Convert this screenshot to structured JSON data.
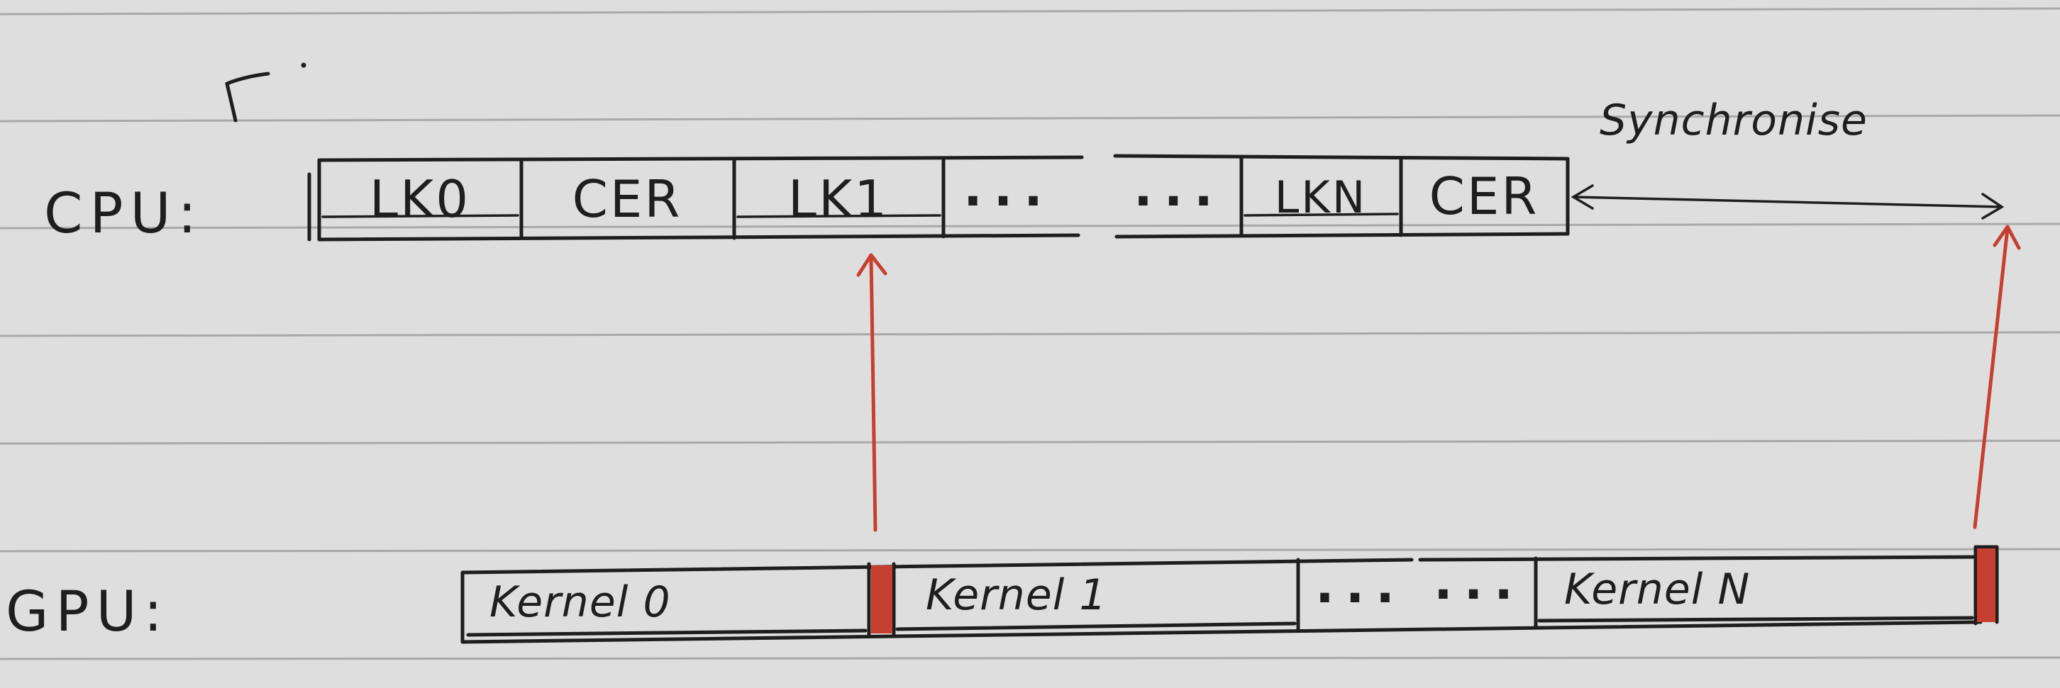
{
  "rows": {
    "cpu_label": "CPU:",
    "gpu_label": "GPU:"
  },
  "cpu_blocks": [
    "LK0",
    "CER",
    "LK1",
    "...",
    "...",
    "LKN",
    "CER"
  ],
  "gpu_blocks": [
    "Kernel 0",
    "Kernel 1",
    "...",
    "...",
    "Kernel N"
  ],
  "annotation": "Synchronise",
  "colors": {
    "paper": "#dedede",
    "rule_line": "#a9a9a9",
    "ink": "#1e1e1e",
    "red_marker": "#c63f30"
  }
}
